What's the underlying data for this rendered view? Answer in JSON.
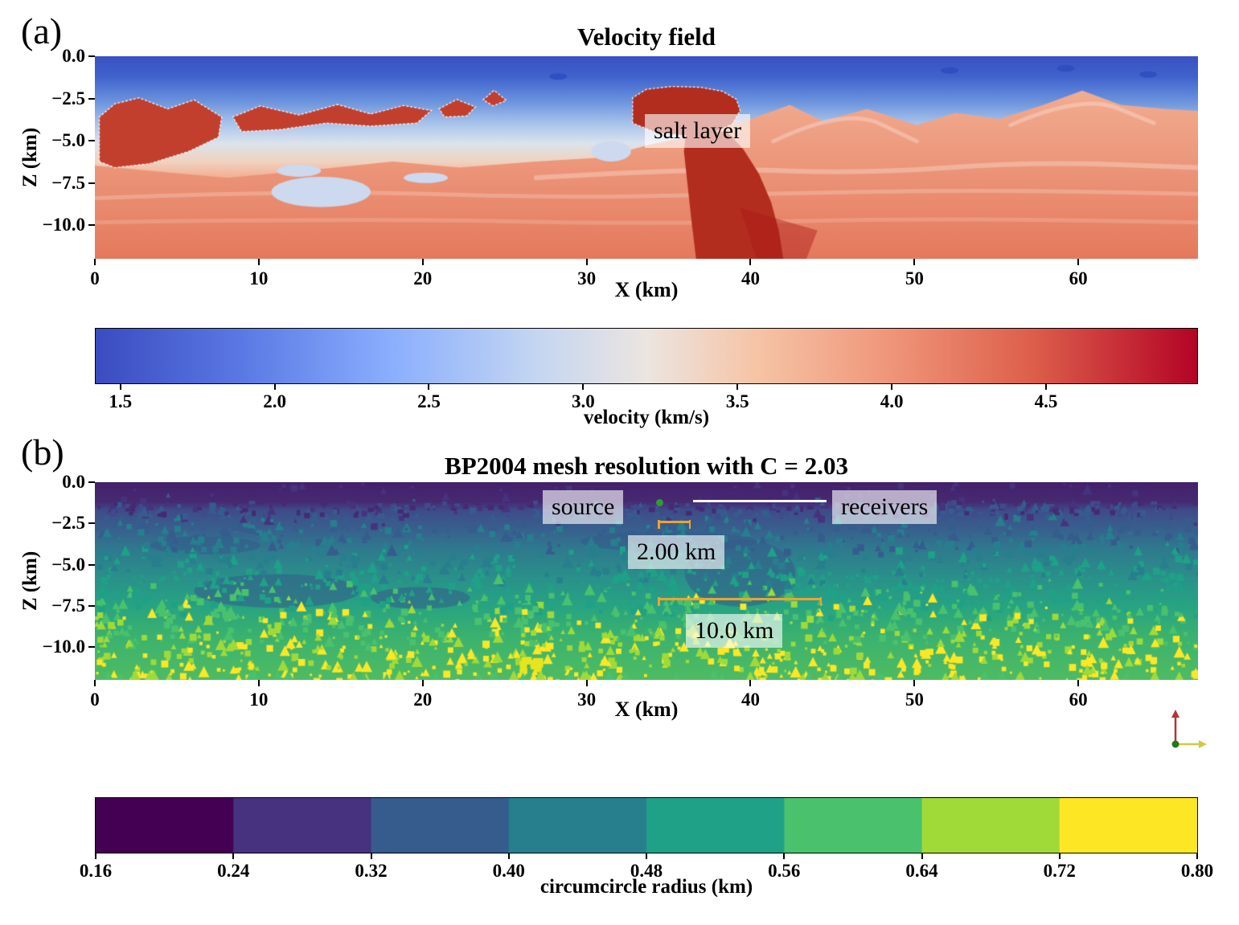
{
  "orientation_widget": {
    "up_axis_color": "#b73333",
    "right_axis_color": "#d6c83e",
    "origin_color": "#1f7a1f"
  },
  "chart_data": [
    {
      "type": "heatmap",
      "panel_label": "(a)",
      "title": "Velocity field",
      "xlabel": "X (km)",
      "ylabel": "Z (km)",
      "xlim": [
        0,
        67.3
      ],
      "ylim": [
        -12,
        0
      ],
      "x_ticks": [
        0,
        10,
        20,
        30,
        40,
        50,
        60
      ],
      "x_tick_labels": [
        "0",
        "10",
        "20",
        "30",
        "40",
        "50",
        "60"
      ],
      "y_ticks": [
        0,
        -2.5,
        -5,
        -7.5,
        -10
      ],
      "y_tick_labels": [
        "0.0",
        "−2.5",
        "−5.0",
        "−7.5",
        "−10.0"
      ],
      "annotations": [
        "salt layer"
      ],
      "colorbar": {
        "label": "velocity (km/s)",
        "vmin": 1.42,
        "vmax": 4.99,
        "ticks": [
          1.5,
          2.0,
          2.5,
          3.0,
          3.5,
          4.0,
          4.5
        ],
        "tick_labels": [
          "1.5",
          "2.0",
          "2.5",
          "3.0",
          "3.5",
          "4.0",
          "4.5"
        ],
        "colormap": "coolwarm",
        "stops": [
          [
            0,
            "#3b4cc0"
          ],
          [
            0.13,
            "#5a78e4"
          ],
          [
            0.27,
            "#8caffe"
          ],
          [
            0.4,
            "#c4d6f2"
          ],
          [
            0.5,
            "#ece5e1"
          ],
          [
            0.6,
            "#f6c4a6"
          ],
          [
            0.72,
            "#f0967a"
          ],
          [
            0.85,
            "#dd5f4b"
          ],
          [
            1,
            "#b40426"
          ]
        ]
      },
      "heatmap_render": {
        "base_stops": [
          [
            0,
            "#3a51c2"
          ],
          [
            0.1,
            "#3f63cd"
          ],
          [
            0.22,
            "#6a92dd"
          ],
          [
            0.33,
            "#a6c3ea"
          ],
          [
            0.43,
            "#dce3ed"
          ],
          [
            0.52,
            "#f0d3c0"
          ],
          [
            0.6,
            "#f3ae92"
          ],
          [
            0.72,
            "#ee9174"
          ],
          [
            0.88,
            "#e67e61"
          ],
          [
            1,
            "#e0745c"
          ]
        ],
        "salt_color": "#c23f2e",
        "diapir_color": "#b22d1e",
        "pale_pocket_color": "#ccd9ee",
        "sediment_top": "#f2ae92",
        "sediment_bottom": "#e5795d"
      }
    },
    {
      "type": "heatmap",
      "panel_label": "(b)",
      "title": "BP2004 mesh resolution with C = 2.03",
      "xlabel": "X (km)",
      "ylabel": "Z (km)",
      "xlim": [
        0,
        67.3
      ],
      "ylim": [
        -12,
        0
      ],
      "x_ticks": [
        0,
        10,
        20,
        30,
        40,
        50,
        60
      ],
      "x_tick_labels": [
        "0",
        "10",
        "20",
        "30",
        "40",
        "50",
        "60"
      ],
      "y_ticks": [
        0,
        -2.5,
        -5,
        -7.5,
        -10
      ],
      "y_tick_labels": [
        "0.0",
        "−2.5",
        "−5.0",
        "−7.5",
        "−10.0"
      ],
      "annotations": [
        "source",
        "receivers",
        "2.00 km",
        "10.0 km"
      ],
      "source_marker_color": "#2d9e2d",
      "receiver_line_color": "#ffffff",
      "measure_color": "#f0a32a",
      "colorbar": {
        "label": "circumcircle radius (km)",
        "ticks": [
          0.16,
          0.24,
          0.32,
          0.4,
          0.48,
          0.56,
          0.64,
          0.72,
          0.8
        ],
        "tick_labels": [
          "0.16",
          "0.24",
          "0.32",
          "0.40",
          "0.48",
          "0.56",
          "0.64",
          "0.72",
          "0.80"
        ],
        "discrete": true,
        "colormap": "viridis",
        "colors": [
          "#440154",
          "#46327e",
          "#365c8d",
          "#277f8e",
          "#1fa187",
          "#4ac16d",
          "#a0da39",
          "#fde725"
        ]
      },
      "heatmap_render": {
        "base_stops": [
          [
            0,
            "#44216b"
          ],
          [
            0.1,
            "#462a72"
          ],
          [
            0.14,
            "#3f4b8a"
          ],
          [
            0.24,
            "#38618e"
          ],
          [
            0.34,
            "#2f7a8e"
          ],
          [
            0.48,
            "#2a908a"
          ],
          [
            0.62,
            "#27a383"
          ],
          [
            0.78,
            "#3bb26f"
          ],
          [
            1,
            "#4fbc62"
          ]
        ],
        "speckle_palette": [
          "#46327e",
          "#365c8d",
          "#277f8e",
          "#1fa187",
          "#4ac16d",
          "#a0da39",
          "#fde725"
        ]
      }
    }
  ]
}
